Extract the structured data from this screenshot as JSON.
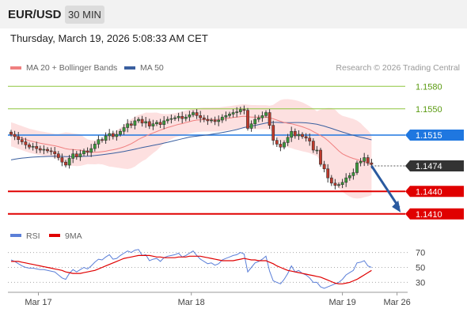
{
  "header": {
    "symbol": "EUR/USD",
    "timeframe": "30 MIN",
    "datetime": "Thursday, March 19, 2026 5:08:33 AM CET"
  },
  "credit": "Research © 2026 Trading Central",
  "colors": {
    "ma20": "#f08080",
    "ma50": "#3a5f9f",
    "bollinger": "#fde0e0",
    "current": "#333333",
    "support": "#e00000",
    "resistance_green": "#8dc63f",
    "pivot_blue": "#1f77e0",
    "rsi": "#5b7fd8",
    "rsi_ma": "#e00000",
    "arrow": "#2a5aa0"
  },
  "chart_data": [
    {
      "type": "candlestick",
      "legend": [
        {
          "name": "MA 20 + Bollinger Bands",
          "color": "#f08080"
        },
        {
          "name": "MA 50",
          "color": "#3a5f9f"
        }
      ],
      "ylim": [
        1.1395,
        1.1595
      ],
      "x_labels": [
        "Mar 17",
        "Mar 18",
        "Mar 19",
        "Mar 26"
      ],
      "current_price": "1.1474",
      "levels": [
        {
          "value": 1.158,
          "label": "1.1580",
          "kind": "resistance"
        },
        {
          "value": 1.155,
          "label": "1.1550",
          "kind": "resistance"
        },
        {
          "value": 1.1515,
          "label": "1.1515",
          "kind": "pivot"
        },
        {
          "value": 1.144,
          "label": "1.1440",
          "kind": "support"
        },
        {
          "value": 1.141,
          "label": "1.1410",
          "kind": "support"
        }
      ],
      "forecast_arrow": {
        "from_bar": 99,
        "from_price": 1.1474,
        "to_bar": 107,
        "to_price": 1.1412
      },
      "closes": [
        1.1516,
        1.1513,
        1.1509,
        1.1506,
        1.1502,
        1.1499,
        1.15,
        1.1497,
        1.1495,
        1.1496,
        1.1494,
        1.1493,
        1.149,
        1.1485,
        1.1479,
        1.1475,
        1.1484,
        1.149,
        1.1486,
        1.149,
        1.1494,
        1.1492,
        1.1497,
        1.1503,
        1.1509,
        1.1508,
        1.1514,
        1.1517,
        1.1513,
        1.1516,
        1.152,
        1.1525,
        1.153,
        1.1528,
        1.1534,
        1.1536,
        1.1531,
        1.1533,
        1.1527,
        1.153,
        1.1532,
        1.1529,
        1.1534,
        1.1536,
        1.1537,
        1.1538,
        1.154,
        1.1537,
        1.1539,
        1.1542,
        1.1545,
        1.1541,
        1.1538,
        1.1536,
        1.1534,
        1.1535,
        1.1533,
        1.1535,
        1.1539,
        1.1541,
        1.1543,
        1.1545,
        1.1546,
        1.1549,
        1.1548,
        1.1524,
        1.153,
        1.1536,
        1.1538,
        1.1541,
        1.1545,
        1.1528,
        1.1508,
        1.1503,
        1.1499,
        1.1505,
        1.1512,
        1.152,
        1.1514,
        1.1516,
        1.1513,
        1.1511,
        1.1507,
        1.1495,
        1.1495,
        1.1476,
        1.147,
        1.1458,
        1.1451,
        1.1448,
        1.1449,
        1.1452,
        1.1458,
        1.1461,
        1.1465,
        1.1478,
        1.148,
        1.1485,
        1.1478,
        1.1476
      ]
    },
    {
      "type": "line",
      "legend": [
        {
          "name": "RSI",
          "color": "#5b7fd8"
        },
        {
          "name": "9MA",
          "color": "#e00000"
        }
      ],
      "ylim": [
        22,
        78
      ],
      "ticks": [
        30,
        50,
        70
      ],
      "rsi": [
        60,
        58,
        55,
        52,
        50,
        49,
        49,
        48,
        47,
        47,
        46,
        45,
        44,
        40,
        36,
        34,
        42,
        47,
        44,
        47,
        50,
        48,
        52,
        57,
        61,
        60,
        64,
        67,
        61,
        62,
        66,
        69,
        72,
        70,
        73,
        74,
        66,
        67,
        59,
        61,
        62,
        58,
        63,
        65,
        66,
        67,
        69,
        64,
        66,
        69,
        72,
        66,
        61,
        58,
        55,
        56,
        53,
        55,
        60,
        62,
        64,
        66,
        67,
        70,
        68,
        44,
        50,
        56,
        58,
        61,
        65,
        45,
        32,
        30,
        28,
        34,
        42,
        52,
        44,
        46,
        42,
        40,
        36,
        30,
        30,
        24,
        22,
        24,
        26,
        28,
        30,
        34,
        40,
        43,
        46,
        56,
        57,
        59,
        52,
        50
      ],
      "rsi_ma": [
        58,
        58,
        58,
        57,
        56,
        55,
        54,
        53,
        52,
        51,
        50,
        49,
        48,
        47,
        46,
        44,
        43,
        42,
        42,
        42,
        43,
        44,
        45,
        46,
        48,
        50,
        52,
        54,
        56,
        58,
        60,
        62,
        63,
        64,
        65,
        66,
        66,
        66,
        66,
        65,
        64,
        64,
        63,
        63,
        63,
        63,
        64,
        64,
        64,
        65,
        65,
        65,
        65,
        64,
        63,
        62,
        61,
        60,
        59,
        59,
        59,
        59,
        60,
        61,
        62,
        61,
        60,
        60,
        59,
        59,
        59,
        57,
        55,
        52,
        50,
        48,
        46,
        45,
        44,
        43,
        42,
        41,
        40,
        39,
        38,
        37,
        35,
        33,
        31,
        29,
        28,
        28,
        29,
        30,
        32,
        34,
        37,
        40,
        43,
        46
      ]
    }
  ]
}
